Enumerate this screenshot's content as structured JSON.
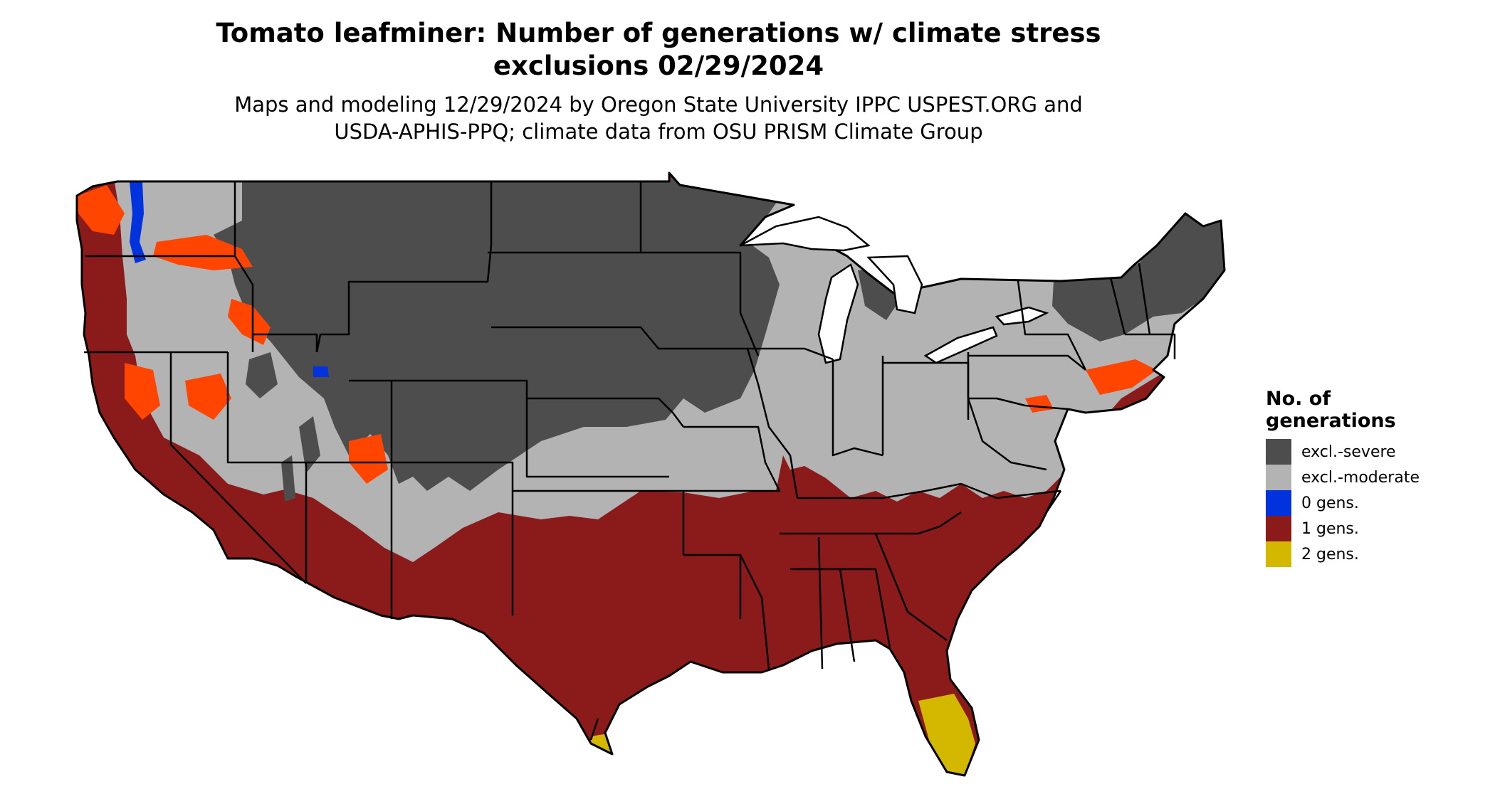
{
  "title": {
    "line1": "Tomato leafminer: Number of generations w/ climate stress",
    "line2": "exclusions 02/29/2024"
  },
  "subtitle": {
    "line1": "Maps and modeling 12/29/2024 by Oregon State University IPPC USPEST.ORG and",
    "line2": "USDA-APHIS-PPQ; climate data from OSU PRISM Climate Group"
  },
  "legend": {
    "title_line1": "No. of",
    "title_line2": "generations",
    "items": [
      {
        "label": "excl.-severe",
        "color": "#4d4d4d"
      },
      {
        "label": "excl.-moderate",
        "color": "#b3b3b3"
      },
      {
        "label": "0 gens.",
        "color": "#0033dd"
      },
      {
        "label": "1 gens.",
        "color": "#8b1a1a"
      },
      {
        "label": "2 gens.",
        "color": "#d4b800"
      }
    ]
  },
  "colors": {
    "excl_severe": "#4d4d4d",
    "excl_moderate": "#b3b3b3",
    "gens_0": "#0033dd",
    "gens_1": "#8b1a1a",
    "gens_2": "#d4b800",
    "transition": "#ff4500",
    "border": "#000000",
    "water": "#ffffff"
  }
}
